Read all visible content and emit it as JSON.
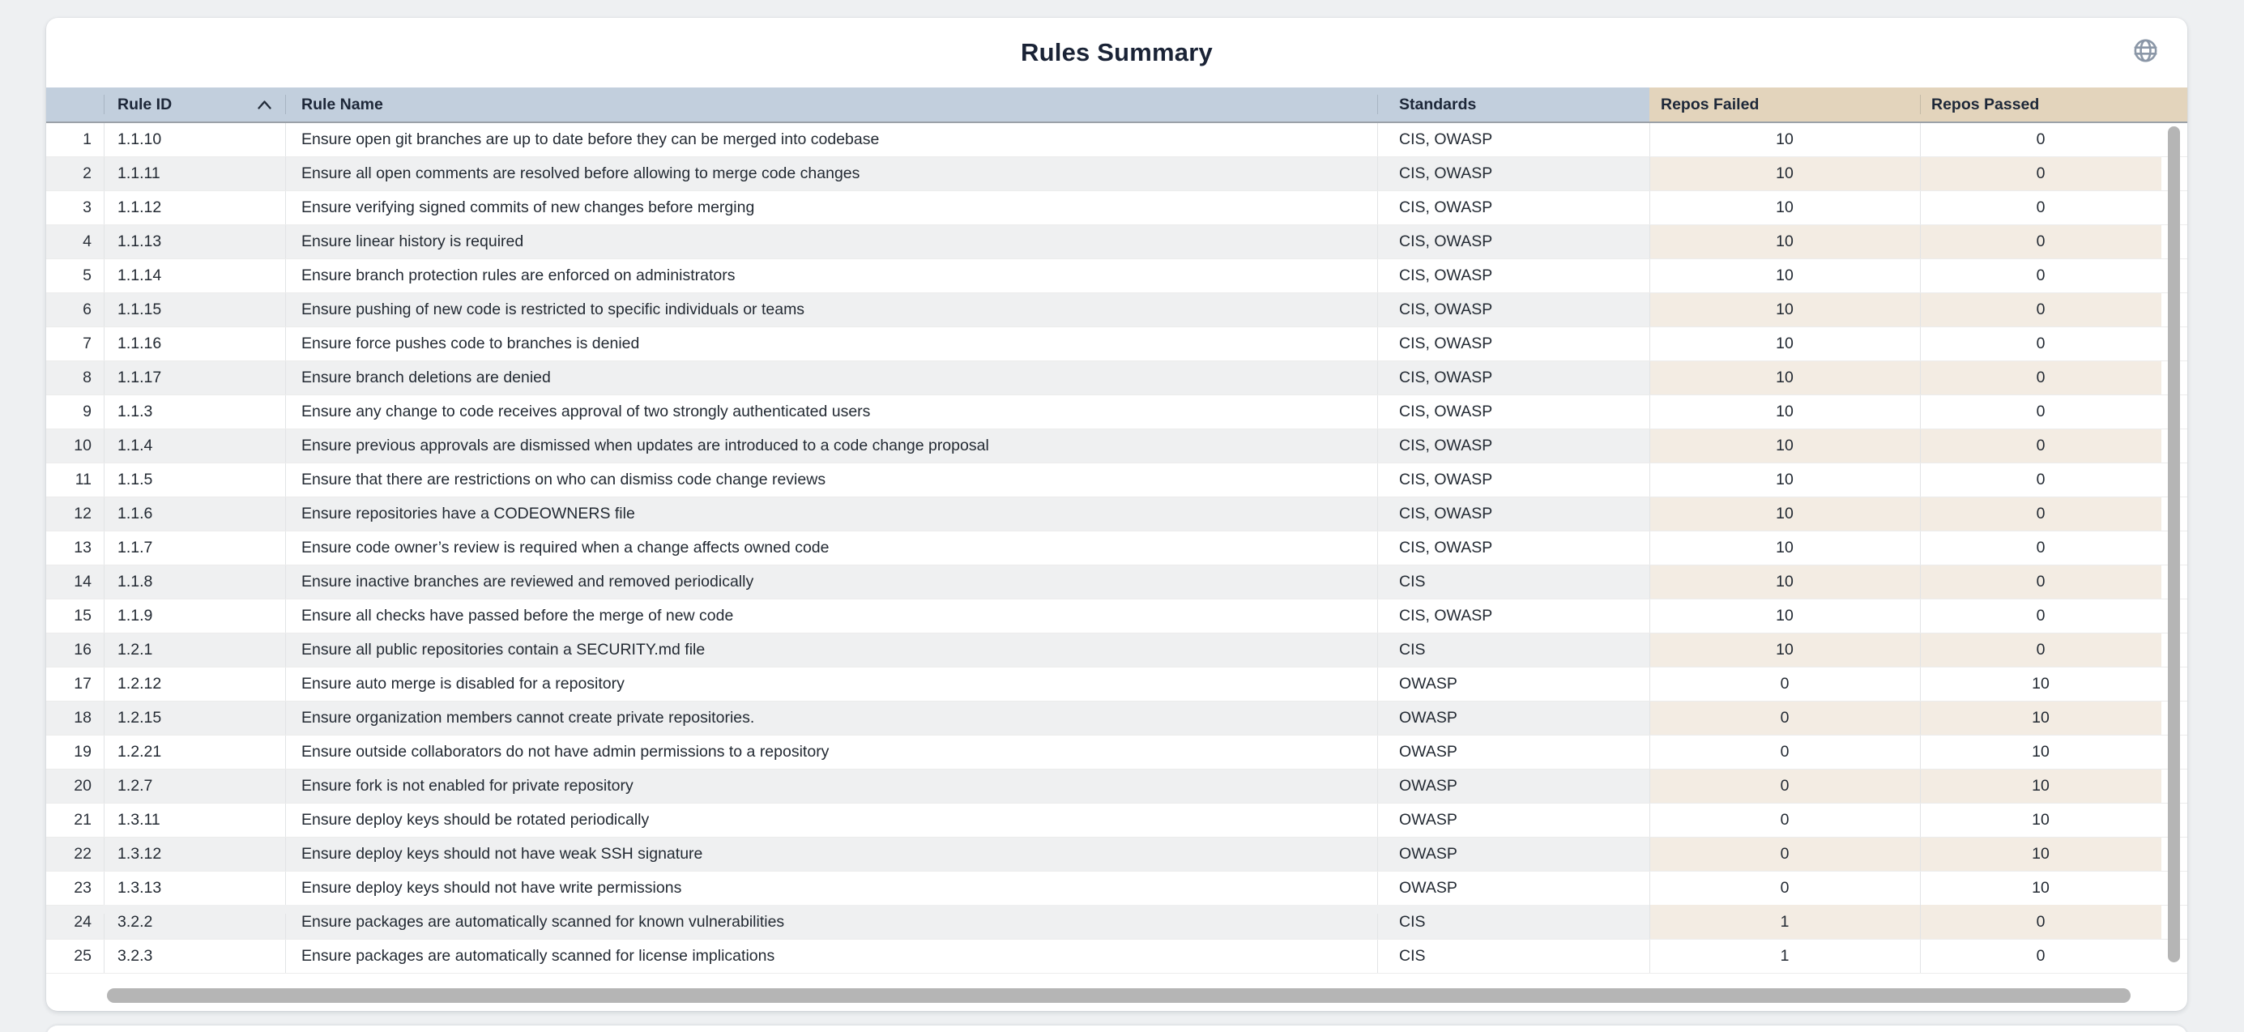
{
  "card": {
    "title": "Rules Summary"
  },
  "icons": {
    "globe": "globe-icon",
    "sort": "sort-ascending-icon"
  },
  "sort": {
    "column": "Rule ID",
    "direction": "ascending"
  },
  "colors": {
    "page_bg": "#eef0f2",
    "header_blue": "#c2cfdd",
    "header_tan": "#e3d4bc",
    "stripe_gray": "#eff0f1",
    "stripe_tan": "#f3ece3",
    "title_color": "#1a2336",
    "scrollbar_thumb": "#b5b5b5",
    "globe_color": "#8b97a7"
  },
  "table": {
    "columns": [
      {
        "key": "num",
        "label": ""
      },
      {
        "key": "rule_id",
        "label": "Rule ID"
      },
      {
        "key": "rule_name",
        "label": "Rule Name"
      },
      {
        "key": "standards",
        "label": "Standards"
      },
      {
        "key": "repos_failed",
        "label": "Repos Failed"
      },
      {
        "key": "repos_passed",
        "label": "Repos Passed"
      }
    ],
    "rows": [
      {
        "num": "1",
        "rule_id": "1.1.10",
        "rule_name": "Ensure open git branches are up to date before they can be merged into codebase",
        "standards": "CIS, OWASP",
        "repos_failed": "10",
        "repos_passed": "0"
      },
      {
        "num": "2",
        "rule_id": "1.1.11",
        "rule_name": "Ensure all open comments are resolved before allowing to merge code changes",
        "standards": "CIS, OWASP",
        "repos_failed": "10",
        "repos_passed": "0"
      },
      {
        "num": "3",
        "rule_id": "1.1.12",
        "rule_name": "Ensure verifying signed commits of new changes before merging",
        "standards": "CIS, OWASP",
        "repos_failed": "10",
        "repos_passed": "0"
      },
      {
        "num": "4",
        "rule_id": "1.1.13",
        "rule_name": "Ensure linear history is required",
        "standards": "CIS, OWASP",
        "repos_failed": "10",
        "repos_passed": "0"
      },
      {
        "num": "5",
        "rule_id": "1.1.14",
        "rule_name": "Ensure branch protection rules are enforced on administrators",
        "standards": "CIS, OWASP",
        "repos_failed": "10",
        "repos_passed": "0"
      },
      {
        "num": "6",
        "rule_id": "1.1.15",
        "rule_name": "Ensure pushing of new code is restricted to specific individuals or teams",
        "standards": "CIS, OWASP",
        "repos_failed": "10",
        "repos_passed": "0"
      },
      {
        "num": "7",
        "rule_id": "1.1.16",
        "rule_name": "Ensure force pushes code to branches is denied",
        "standards": "CIS, OWASP",
        "repos_failed": "10",
        "repos_passed": "0"
      },
      {
        "num": "8",
        "rule_id": "1.1.17",
        "rule_name": "Ensure branch deletions are denied",
        "standards": "CIS, OWASP",
        "repos_failed": "10",
        "repos_passed": "0"
      },
      {
        "num": "9",
        "rule_id": "1.1.3",
        "rule_name": "Ensure any change to code receives approval of two strongly authenticated users",
        "standards": "CIS, OWASP",
        "repos_failed": "10",
        "repos_passed": "0"
      },
      {
        "num": "10",
        "rule_id": "1.1.4",
        "rule_name": "Ensure previous approvals are dismissed when updates are introduced to a code change proposal",
        "standards": "CIS, OWASP",
        "repos_failed": "10",
        "repos_passed": "0"
      },
      {
        "num": "11",
        "rule_id": "1.1.5",
        "rule_name": "Ensure that there are restrictions on who can dismiss code change reviews",
        "standards": "CIS, OWASP",
        "repos_failed": "10",
        "repos_passed": "0"
      },
      {
        "num": "12",
        "rule_id": "1.1.6",
        "rule_name": "Ensure repositories have a CODEOWNERS file",
        "standards": "CIS, OWASP",
        "repos_failed": "10",
        "repos_passed": "0"
      },
      {
        "num": "13",
        "rule_id": "1.1.7",
        "rule_name": "Ensure code owner’s review is required when a change affects owned code",
        "standards": "CIS, OWASP",
        "repos_failed": "10",
        "repos_passed": "0"
      },
      {
        "num": "14",
        "rule_id": "1.1.8",
        "rule_name": "Ensure inactive branches are reviewed and removed periodically",
        "standards": "CIS",
        "repos_failed": "10",
        "repos_passed": "0"
      },
      {
        "num": "15",
        "rule_id": "1.1.9",
        "rule_name": "Ensure all checks have passed before the merge of new code",
        "standards": "CIS, OWASP",
        "repos_failed": "10",
        "repos_passed": "0"
      },
      {
        "num": "16",
        "rule_id": "1.2.1",
        "rule_name": "Ensure all public repositories contain a SECURITY.md file",
        "standards": "CIS",
        "repos_failed": "10",
        "repos_passed": "0"
      },
      {
        "num": "17",
        "rule_id": "1.2.12",
        "rule_name": "Ensure auto merge is disabled for a repository",
        "standards": "OWASP",
        "repos_failed": "0",
        "repos_passed": "10"
      },
      {
        "num": "18",
        "rule_id": "1.2.15",
        "rule_name": "Ensure organization members cannot create private repositories.",
        "standards": "OWASP",
        "repos_failed": "0",
        "repos_passed": "10"
      },
      {
        "num": "19",
        "rule_id": "1.2.21",
        "rule_name": "Ensure outside collaborators do not have admin permissions to a repository",
        "standards": "OWASP",
        "repos_failed": "0",
        "repos_passed": "10"
      },
      {
        "num": "20",
        "rule_id": "1.2.7",
        "rule_name": "Ensure fork is not enabled for private repository",
        "standards": "OWASP",
        "repos_failed": "0",
        "repos_passed": "10"
      },
      {
        "num": "21",
        "rule_id": "1.3.11",
        "rule_name": "Ensure deploy keys should be rotated periodically",
        "standards": "OWASP",
        "repos_failed": "0",
        "repos_passed": "10"
      },
      {
        "num": "22",
        "rule_id": "1.3.12",
        "rule_name": "Ensure deploy keys should not have weak SSH signature",
        "standards": "OWASP",
        "repos_failed": "0",
        "repos_passed": "10"
      },
      {
        "num": "23",
        "rule_id": "1.3.13",
        "rule_name": "Ensure deploy keys should not have write permissions",
        "standards": "OWASP",
        "repos_failed": "0",
        "repos_passed": "10"
      },
      {
        "num": "24",
        "rule_id": "3.2.2",
        "rule_name": "Ensure packages are automatically scanned for known vulnerabilities",
        "standards": "CIS",
        "repos_failed": "1",
        "repos_passed": "0"
      },
      {
        "num": "25",
        "rule_id": "3.2.3",
        "rule_name": "Ensure packages are automatically scanned for license implications",
        "standards": "CIS",
        "repos_failed": "1",
        "repos_passed": "0"
      }
    ]
  }
}
